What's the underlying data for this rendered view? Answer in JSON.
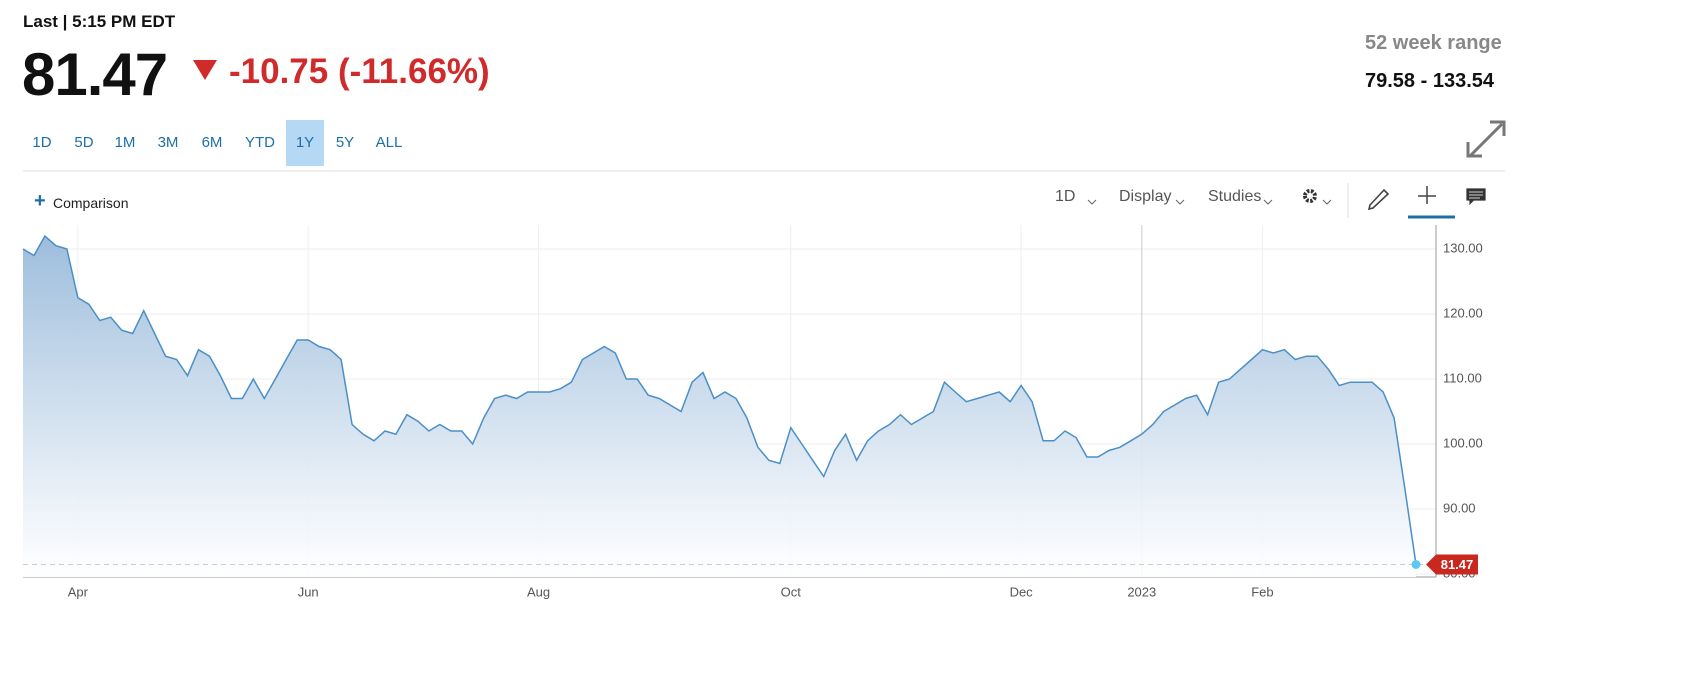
{
  "header": {
    "last_label": "Last | 5:15 PM EDT",
    "last_price": "81.47",
    "change": "-10.75 (-11.66%)",
    "range_title": "52 week range",
    "range_value": "79.58 - 133.54"
  },
  "ranges": [
    {
      "label": "1D"
    },
    {
      "label": "5D"
    },
    {
      "label": "1M"
    },
    {
      "label": "3M"
    },
    {
      "label": "6M"
    },
    {
      "label": "YTD"
    },
    {
      "label": "1Y",
      "selected": true
    },
    {
      "label": "5Y"
    },
    {
      "label": "ALL"
    }
  ],
  "toolbar": {
    "comparison": "Comparison",
    "interval": "1D",
    "display": "Display",
    "studies": "Studies"
  },
  "chart_data": {
    "type": "line",
    "color": "#4a8fc6",
    "grid": true,
    "categories": [
      null,
      null,
      null,
      null,
      null,
      "Apr",
      null,
      null,
      null,
      null,
      null,
      null,
      null,
      null,
      null,
      null,
      null,
      null,
      null,
      null,
      null,
      null,
      null,
      null,
      null,
      null,
      "Jun",
      null,
      null,
      null,
      null,
      null,
      null,
      null,
      null,
      null,
      null,
      null,
      null,
      null,
      null,
      null,
      null,
      null,
      null,
      null,
      null,
      "Aug",
      null,
      null,
      null,
      null,
      null,
      null,
      null,
      null,
      null,
      null,
      null,
      null,
      null,
      null,
      null,
      null,
      null,
      null,
      null,
      null,
      null,
      null,
      "Oct",
      null,
      null,
      null,
      null,
      null,
      null,
      null,
      null,
      null,
      null,
      null,
      null,
      null,
      null,
      null,
      null,
      null,
      null,
      null,
      null,
      "Dec",
      null,
      null,
      null,
      null,
      null,
      null,
      null,
      null,
      null,
      null,
      "2023",
      null,
      null,
      null,
      null,
      null,
      null,
      null,
      null,
      null,
      null,
      "Feb",
      null,
      null,
      null,
      null,
      null,
      null,
      null,
      null,
      null,
      null,
      null,
      null,
      null,
      null
    ],
    "values": [
      130,
      129,
      132,
      130.5,
      130,
      122.5,
      121.5,
      119,
      119.5,
      117.5,
      117,
      120.5,
      117,
      113.5,
      113,
      110.5,
      114.5,
      113.5,
      110.5,
      107,
      107,
      110,
      107,
      110,
      113,
      116,
      116,
      115,
      114.5,
      113,
      103,
      101.5,
      100.5,
      102,
      101.5,
      104.5,
      103.5,
      102,
      103,
      102,
      102,
      100,
      104,
      107,
      107.5,
      107,
      108,
      108,
      108,
      108.5,
      109.5,
      113,
      114,
      115,
      114,
      110,
      110,
      107.5,
      107,
      106,
      105,
      109.5,
      111,
      107,
      108,
      107,
      104,
      99.5,
      97.5,
      97,
      102.5,
      100,
      97.5,
      95,
      99,
      101.5,
      97.5,
      100.5,
      102,
      103,
      104.5,
      103,
      104,
      105,
      109.5,
      108,
      106.5,
      107,
      107.5,
      108,
      106.5,
      109,
      106.5,
      100.5,
      100.5,
      102,
      101,
      98,
      98,
      99,
      99.5,
      100.5,
      101.5,
      103,
      105,
      106,
      107,
      107.5,
      104.5,
      109.5,
      110,
      111.5,
      113,
      114.5,
      114,
      114.5,
      113,
      113.5,
      113.5,
      111.5,
      109,
      109.5,
      109.5,
      109.5,
      108,
      104,
      93,
      81.47
    ],
    "ylim": [
      79.54,
      133.69
    ],
    "yticks": [
      {
        "value": 80,
        "label": "80.00"
      },
      {
        "value": 90,
        "label": "90.00"
      },
      {
        "value": 100,
        "label": "100.00"
      },
      {
        "value": 110,
        "label": "110.00"
      },
      {
        "value": 120,
        "label": "120.00"
      },
      {
        "value": 130,
        "label": "130.00"
      }
    ]
  }
}
